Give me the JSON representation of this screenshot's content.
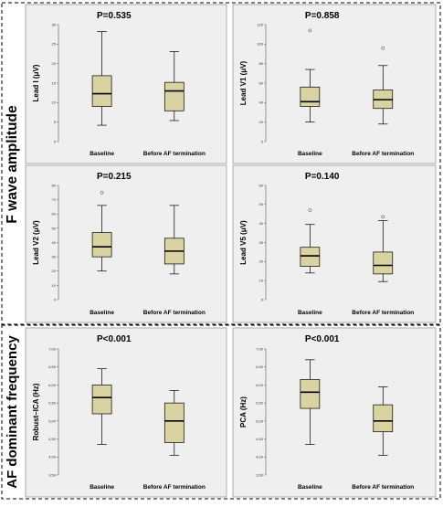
{
  "groups": [
    {
      "label": "F wave amplitude",
      "charts": [
        0,
        1,
        2,
        3
      ]
    },
    {
      "label": "AF dominant frequency",
      "charts": [
        4,
        5
      ]
    }
  ],
  "chart_data": [
    {
      "type": "box",
      "title": "P=0.535",
      "ylabel": "Lead I (μV)",
      "categories": [
        "Baseline",
        "Before AF termination"
      ],
      "ylim": [
        0,
        30
      ],
      "yticks": [
        "0",
        "5",
        "10",
        "15",
        "20",
        "25",
        "30"
      ],
      "boxes": [
        {
          "min": 4.2,
          "q1": 9,
          "median": 12.3,
          "q3": 16.9,
          "max": 28.2,
          "outliers": []
        },
        {
          "min": 5.4,
          "q1": 7.9,
          "median": 13,
          "q3": 15.2,
          "max": 23.1,
          "outliers": []
        }
      ]
    },
    {
      "type": "box",
      "title": "P=0.858",
      "ylabel": "Lead V1 (μV)",
      "categories": [
        "Baseline",
        "Before AF termination"
      ],
      "ylim": [
        0,
        120
      ],
      "yticks": [
        "0",
        "20",
        "40",
        "60",
        "80",
        "100",
        "120"
      ],
      "boxes": [
        {
          "min": 20,
          "q1": 36,
          "median": 41,
          "q3": 56,
          "max": 74,
          "outliers": [
            114
          ]
        },
        {
          "min": 18,
          "q1": 34,
          "median": 43,
          "q3": 53,
          "max": 78,
          "outliers": [
            96
          ]
        }
      ]
    },
    {
      "type": "box",
      "title": "P=0.215",
      "ylabel": "Lead V2 (μV)",
      "categories": [
        "Baseline",
        "Before AF termination"
      ],
      "ylim": [
        0,
        80
      ],
      "yticks": [
        "0",
        "10",
        "20",
        "30",
        "40",
        "50",
        "60",
        "70",
        "80"
      ],
      "boxes": [
        {
          "min": 20,
          "q1": 30,
          "median": 37,
          "q3": 47,
          "max": 66,
          "outliers": [
            75
          ]
        },
        {
          "min": 18,
          "q1": 25,
          "median": 34,
          "q3": 43,
          "max": 66,
          "outliers": []
        }
      ]
    },
    {
      "type": "box",
      "title": "P=0.140",
      "ylabel": "Lead V5 (μV)",
      "categories": [
        "Baseline",
        "Before AF termination"
      ],
      "ylim": [
        0,
        60
      ],
      "yticks": [
        "0",
        "10",
        "20",
        "30",
        "40",
        "50",
        "60"
      ],
      "boxes": [
        {
          "min": 14,
          "q1": 17.5,
          "median": 23,
          "q3": 27.5,
          "max": 39.5,
          "outliers": [
            47
          ]
        },
        {
          "min": 9.5,
          "q1": 13.5,
          "median": 18,
          "q3": 25,
          "max": 41.5,
          "outliers": [
            43.5
          ]
        }
      ]
    },
    {
      "type": "box",
      "title": "P<0.001",
      "ylabel": "Robust–ICA (Hz)",
      "categories": [
        "Baseline",
        "Before AF termination"
      ],
      "ylim": [
        3.5,
        7.0
      ],
      "yticks": [
        "3,50",
        "4,00",
        "4,50",
        "5,00",
        "5,50",
        "6,00",
        "6,50",
        "7,00"
      ],
      "boxes": [
        {
          "min": 4.35,
          "q1": 5.2,
          "median": 5.65,
          "q3": 6.0,
          "max": 6.45,
          "outliers": []
        },
        {
          "min": 4.05,
          "q1": 4.4,
          "median": 5.0,
          "q3": 5.5,
          "max": 5.85,
          "outliers": []
        }
      ]
    },
    {
      "type": "box",
      "title": "P<0.001",
      "ylabel": "PCA (Hz)",
      "categories": [
        "Baseline",
        "Before AF termination"
      ],
      "ylim": [
        3.5,
        7.0
      ],
      "yticks": [
        "3,50",
        "4,00",
        "4,50",
        "5,00",
        "5,50",
        "6,00",
        "6,50",
        "7,00"
      ],
      "boxes": [
        {
          "min": 4.35,
          "q1": 5.35,
          "median": 5.8,
          "q3": 6.15,
          "max": 6.7,
          "outliers": []
        },
        {
          "min": 4.05,
          "q1": 4.7,
          "median": 5.0,
          "q3": 5.45,
          "max": 5.95,
          "outliers": []
        }
      ]
    }
  ],
  "colors": {
    "plot_background": "#efefef",
    "box_fill": "#d9d3a1",
    "stroke": "#000000",
    "frame": "#9a9a9a",
    "dash": "#000000"
  }
}
